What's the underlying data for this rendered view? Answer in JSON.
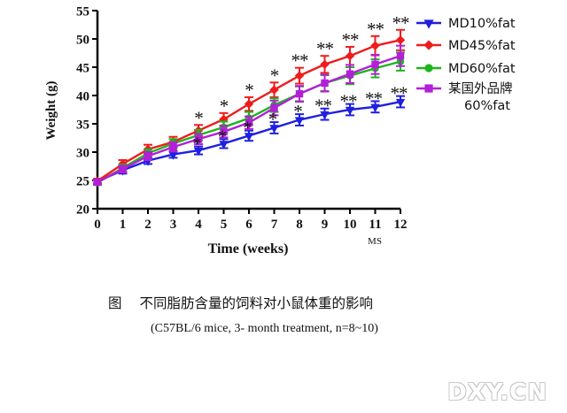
{
  "chart_data": {
    "type": "line",
    "xlabel": "Time (weeks)",
    "ylabel": "Weight (g)",
    "x": [
      0,
      1,
      2,
      3,
      4,
      5,
      6,
      7,
      8,
      9,
      10,
      11,
      12
    ],
    "xlim": [
      0,
      12
    ],
    "ylim": [
      20,
      55
    ],
    "yticks": [
      20,
      25,
      30,
      35,
      40,
      45,
      50,
      55
    ],
    "xticks": [
      0,
      1,
      2,
      3,
      4,
      5,
      6,
      7,
      8,
      9,
      10,
      11,
      12
    ],
    "grid": false,
    "legend_position": "right",
    "x_annotation": "MS",
    "series": [
      {
        "name": "MD10%fat",
        "color": "#1f1fe0",
        "marker": "triangle-down",
        "values": [
          24.8,
          26.8,
          28.5,
          29.6,
          30.3,
          31.5,
          32.9,
          34.3,
          35.7,
          36.7,
          37.5,
          38.0,
          38.9
        ],
        "errors": [
          0.4,
          0.6,
          0.6,
          0.6,
          0.7,
          0.8,
          0.9,
          1.0,
          1.0,
          1.0,
          1.0,
          1.0,
          1.0
        ]
      },
      {
        "name": "MD45%fat",
        "color": "#ee1c1c",
        "marker": "diamond",
        "values": [
          24.9,
          27.9,
          30.5,
          31.8,
          33.8,
          35.8,
          38.5,
          41.0,
          43.5,
          45.5,
          47.0,
          48.8,
          49.8
        ],
        "errors": [
          0.4,
          0.7,
          0.8,
          0.9,
          1.0,
          1.1,
          1.2,
          1.3,
          1.4,
          1.5,
          1.6,
          1.7,
          1.8
        ]
      },
      {
        "name": "MD60%fat",
        "color": "#1eb41e",
        "marker": "circle",
        "values": [
          24.6,
          27.2,
          29.8,
          31.5,
          33.0,
          34.4,
          36.0,
          38.3,
          40.3,
          42.2,
          43.5,
          44.8,
          46.0
        ],
        "errors": [
          0.4,
          0.6,
          0.7,
          0.8,
          0.9,
          1.0,
          1.1,
          1.2,
          1.3,
          1.4,
          1.5,
          1.6,
          1.6
        ]
      },
      {
        "name": "某国外品牌\n60%fat",
        "color": "#b31fd8",
        "marker": "square",
        "values": [
          24.7,
          27.0,
          29.3,
          30.9,
          32.3,
          33.6,
          35.2,
          37.8,
          40.3,
          42.2,
          43.8,
          45.5,
          47.0
        ],
        "errors": [
          0.4,
          0.6,
          0.7,
          0.8,
          0.9,
          1.0,
          1.1,
          1.3,
          1.4,
          1.5,
          1.6,
          1.7,
          1.8
        ]
      }
    ],
    "significance": {
      "upper": [
        "",
        "",
        "",
        "",
        "*",
        "*",
        "*",
        "*",
        "**",
        "**",
        "**",
        "**",
        "**"
      ],
      "lower": [
        "",
        "",
        "",
        "",
        "*",
        "*",
        "*",
        "*",
        "*",
        "**",
        "**",
        "**",
        "**"
      ]
    }
  },
  "caption": {
    "figure_label": "图",
    "title": "不同脂肪含量的饲料对小鼠体重的影响",
    "subtitle": "(C57BL/6  mice, 3- month treatment, n=8~10)"
  },
  "watermark": "DXY.CN"
}
